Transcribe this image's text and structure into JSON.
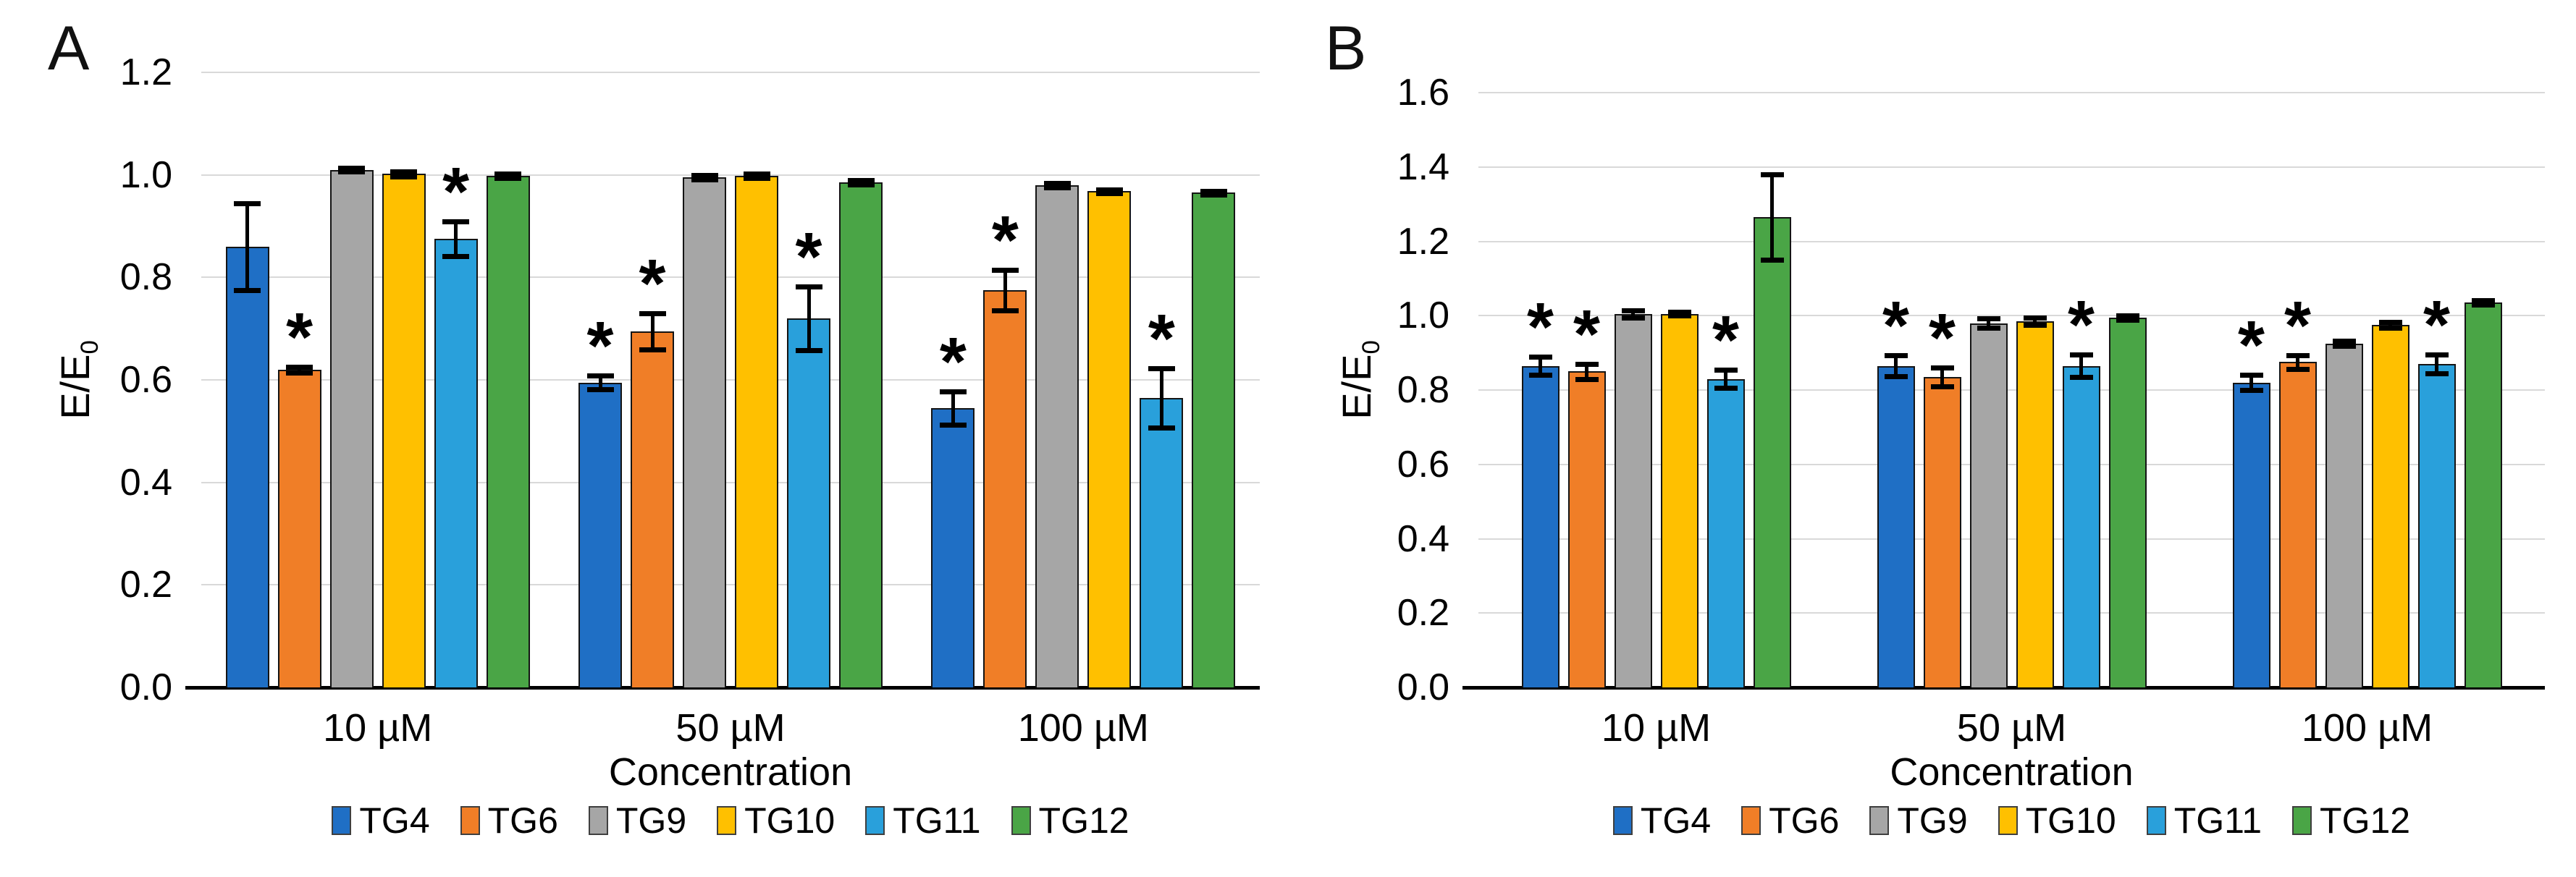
{
  "figure": {
    "background": "#ffffff",
    "y_axis_title": "E/E",
    "y_axis_title_sub": "0",
    "significance_marker": "*",
    "grid_color": "#D9D9D9",
    "axis_color": "#000000",
    "error_bar_color": "#000000"
  },
  "chart_data": [
    {
      "type": "bar",
      "panel_label": "A",
      "title": "",
      "xlabel": "Concentration",
      "ylabel": "E/E0",
      "ylim": [
        0.0,
        1.2
      ],
      "ytick_step": 0.2,
      "ytick_labels": [
        "0.0",
        "0.2",
        "0.4",
        "0.6",
        "0.8",
        "1.0",
        "1.2"
      ],
      "grid": true,
      "legend_position": "bottom",
      "categories": [
        "10 µM",
        "50 µM",
        "100 µM"
      ],
      "series": [
        {
          "name": "TG4",
          "color": "#1F6FC5",
          "values": [
            0.86,
            0.595,
            0.545
          ],
          "errors": [
            0.085,
            0.013,
            0.032
          ],
          "significant": [
            false,
            true,
            true
          ]
        },
        {
          "name": "TG6",
          "color": "#F07E27",
          "values": [
            0.62,
            0.695,
            0.775
          ],
          "errors": [
            0.006,
            0.035,
            0.04
          ],
          "significant": [
            true,
            true,
            true
          ]
        },
        {
          "name": "TG9",
          "color": "#A6A6A6",
          "values": [
            1.01,
            0.995,
            0.98
          ],
          "errors": [
            0.004,
            0.004,
            0.004
          ],
          "significant": [
            false,
            false,
            false
          ]
        },
        {
          "name": "TG10",
          "color": "#FFC000",
          "values": [
            1.002,
            0.998,
            0.968
          ],
          "errors": [
            0.005,
            0.004,
            0.004
          ],
          "significant": [
            false,
            false,
            false
          ]
        },
        {
          "name": "TG11",
          "color": "#29A0DB",
          "values": [
            0.875,
            0.72,
            0.565
          ],
          "errors": [
            0.034,
            0.062,
            0.058
          ],
          "significant": [
            true,
            true,
            true
          ]
        },
        {
          "name": "TG12",
          "color": "#4AA546",
          "values": [
            0.998,
            0.985,
            0.965
          ],
          "errors": [
            0.004,
            0.004,
            0.004
          ],
          "significant": [
            false,
            false,
            false
          ]
        }
      ]
    },
    {
      "type": "bar",
      "panel_label": "B",
      "title": "",
      "xlabel": "Concentration",
      "ylabel": "E/E0",
      "ylim": [
        0.0,
        1.6
      ],
      "ytick_step": 0.2,
      "ytick_labels": [
        "0.0",
        "0.2",
        "0.4",
        "0.6",
        "0.8",
        "1.0",
        "1.2",
        "1.4",
        "1.6"
      ],
      "grid": true,
      "legend_position": "bottom",
      "categories": [
        "10 µM",
        "50 µM",
        "100 µM"
      ],
      "series": [
        {
          "name": "TG4",
          "color": "#1F6FC5",
          "values": [
            0.865,
            0.865,
            0.82
          ],
          "errors": [
            0.025,
            0.028,
            0.02
          ],
          "significant": [
            true,
            true,
            true
          ]
        },
        {
          "name": "TG6",
          "color": "#F07E27",
          "values": [
            0.85,
            0.835,
            0.875
          ],
          "errors": [
            0.02,
            0.025,
            0.018
          ],
          "significant": [
            true,
            true,
            true
          ]
        },
        {
          "name": "TG9",
          "color": "#A6A6A6",
          "values": [
            1.005,
            0.98,
            0.925
          ],
          "errors": [
            0.01,
            0.012,
            0.007
          ],
          "significant": [
            false,
            false,
            false
          ]
        },
        {
          "name": "TG10",
          "color": "#FFC000",
          "values": [
            1.005,
            0.985,
            0.975
          ],
          "errors": [
            0.005,
            0.01,
            0.008
          ],
          "significant": [
            false,
            false,
            false
          ]
        },
        {
          "name": "TG11",
          "color": "#29A0DB",
          "values": [
            0.83,
            0.865,
            0.87
          ],
          "errors": [
            0.025,
            0.03,
            0.025
          ],
          "significant": [
            true,
            true,
            true
          ]
        },
        {
          "name": "TG12",
          "color": "#4AA546",
          "values": [
            1.265,
            0.995,
            1.035
          ],
          "errors": [
            0.115,
            0.006,
            0.006
          ],
          "significant": [
            false,
            false,
            false
          ]
        }
      ]
    }
  ]
}
